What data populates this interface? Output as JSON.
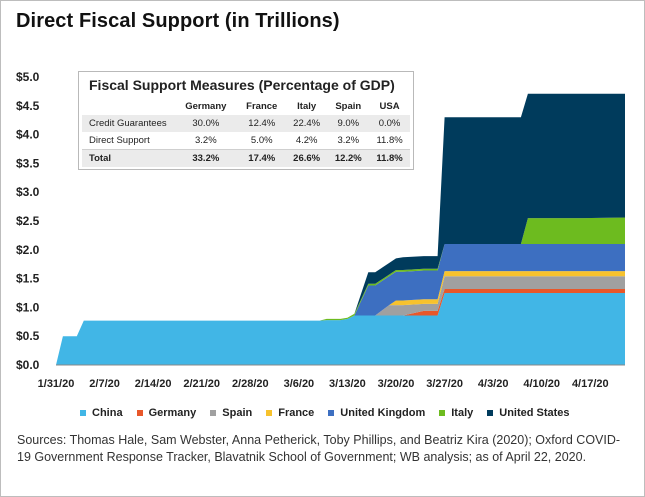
{
  "title": "Direct Fiscal Support (in Trillions)",
  "table": {
    "title": "Fiscal Support Measures (Percentage of GDP)",
    "columns": [
      "",
      "Germany",
      "France",
      "Italy",
      "Spain",
      "USA"
    ],
    "rows": [
      {
        "label": "Credit Guarantees",
        "values": [
          "30.0%",
          "12.4%",
          "22.4%",
          "9.0%",
          "0.0%"
        ]
      },
      {
        "label": "Direct Support",
        "values": [
          "3.2%",
          "5.0%",
          "4.2%",
          "3.2%",
          "11.8%"
        ]
      },
      {
        "label": "Total",
        "values": [
          "33.2%",
          "17.4%",
          "26.6%",
          "12.2%",
          "11.8%"
        ]
      }
    ]
  },
  "legend": [
    {
      "name": "China",
      "color": "#41b6e6"
    },
    {
      "name": "Germany",
      "color": "#e8572a"
    },
    {
      "name": "Spain",
      "color": "#a0a0a0"
    },
    {
      "name": "France",
      "color": "#f7c22d"
    },
    {
      "name": "United Kingdom",
      "color": "#3d6fc1"
    },
    {
      "name": "Italy",
      "color": "#6dbb1f"
    },
    {
      "name": "United States",
      "color": "#003b5c"
    }
  ],
  "source": "Sources: Thomas Hale, Sam Webster, Anna Petherick, Toby Phillips, and Beatriz Kira (2020); Oxford COVID-19 Government Response Tracker, Blavatnik School of Government; WB analysis; as of April 22, 2020.",
  "chart_data": {
    "type": "area",
    "stacked": true,
    "x_axis": {
      "start": "2020-01-31",
      "end": "2020-04-22",
      "tick_labels": [
        "1/31/20",
        "2/7/20",
        "2/14/20",
        "2/21/20",
        "2/28/20",
        "3/6/20",
        "3/13/20",
        "3/20/20",
        "3/27/20",
        "4/3/20",
        "4/10/20",
        "4/17/20"
      ]
    },
    "y_axis": {
      "min": 0,
      "max": 5,
      "step": 0.5,
      "tick_labels": [
        "$0.0",
        "$0.5",
        "$1.0",
        "$1.5",
        "$2.0",
        "$2.5",
        "$3.0",
        "$3.5",
        "$4.0",
        "$4.5",
        "$5.0"
      ]
    },
    "x": [
      "2020-01-31",
      "2020-02-01",
      "2020-02-03",
      "2020-02-04",
      "2020-03-05",
      "2020-03-09",
      "2020-03-10",
      "2020-03-12",
      "2020-03-13",
      "2020-03-14",
      "2020-03-16",
      "2020-03-17",
      "2020-03-19",
      "2020-03-20",
      "2020-03-21",
      "2020-03-24",
      "2020-03-25",
      "2020-03-26",
      "2020-03-27",
      "2020-04-07",
      "2020-04-08",
      "2020-04-16",
      "2020-04-22"
    ],
    "series": [
      {
        "name": "China",
        "values": [
          0,
          0.5,
          0.5,
          0.77,
          0.77,
          0.77,
          0.78,
          0.78,
          0.8,
          0.86,
          0.86,
          0.86,
          0.86,
          0.86,
          0.86,
          0.86,
          0.86,
          0.86,
          1.25,
          1.25,
          1.25,
          1.25,
          1.25
        ]
      },
      {
        "name": "Germany",
        "values": [
          0,
          0,
          0,
          0,
          0,
          0,
          0,
          0,
          0,
          0,
          0,
          0,
          0,
          0,
          0,
          0.08,
          0.08,
          0.08,
          0.07,
          0.07,
          0.07,
          0.07,
          0.07
        ]
      },
      {
        "name": "Spain",
        "values": [
          0,
          0,
          0,
          0,
          0,
          0,
          0,
          0,
          0,
          0,
          0,
          0,
          0.18,
          0.18,
          0.18,
          0.12,
          0.12,
          0.12,
          0.22,
          0.22,
          0.22,
          0.22,
          0.22
        ]
      },
      {
        "name": "France",
        "values": [
          0,
          0,
          0,
          0,
          0,
          0,
          0,
          0,
          0,
          0,
          0,
          0,
          0,
          0.08,
          0.08,
          0.08,
          0.08,
          0.08,
          0.09,
          0.09,
          0.09,
          0.09,
          0.09
        ]
      },
      {
        "name": "United Kingdom",
        "values": [
          0,
          0,
          0,
          0,
          0,
          0,
          0,
          0,
          0,
          0,
          0.52,
          0.52,
          0.5,
          0.5,
          0.5,
          0.5,
          0.5,
          0.5,
          0.47,
          0.47,
          0.47,
          0.47,
          0.47
        ]
      },
      {
        "name": "Italy",
        "values": [
          0,
          0,
          0,
          0,
          0,
          0,
          0.02,
          0.02,
          0.02,
          0.03,
          0.03,
          0.03,
          0.03,
          0.03,
          0.03,
          0.03,
          0.03,
          0.03,
          0.0,
          0.0,
          0.45,
          0.45,
          0.46
        ]
      },
      {
        "name": "United States",
        "values": [
          0,
          0,
          0,
          0,
          0,
          0,
          0,
          0,
          0,
          0,
          0.2,
          0.2,
          0.2,
          0.2,
          0.22,
          0.22,
          0.22,
          0.22,
          2.2,
          2.2,
          2.16,
          2.16,
          2.15
        ]
      }
    ],
    "grid": false,
    "legend_position": "bottom"
  }
}
